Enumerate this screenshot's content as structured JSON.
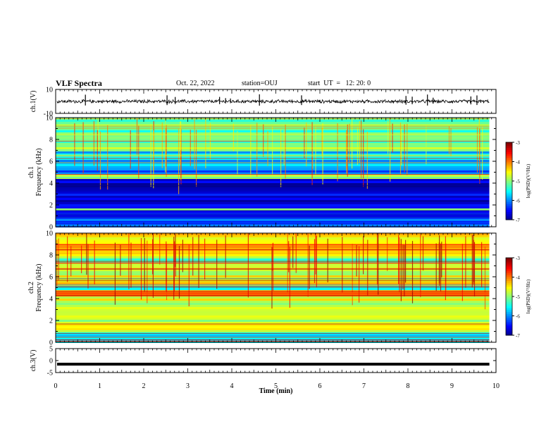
{
  "header": {
    "title": "VLF Spectra",
    "date": "Oct. 22, 2022",
    "station": "station=OUJ",
    "start": "start  UT  =   12: 20: 0"
  },
  "chart_data": [
    {
      "type": "line",
      "ylabel": "ch.1(V)",
      "ylim": [
        -10,
        10
      ],
      "yticks": [
        "10",
        "-10"
      ],
      "series": [
        {
          "description_free": true,
          "amplitude_v": 1.2,
          "baseline_v": 0
        }
      ]
    },
    {
      "type": "heatmap",
      "ylabel_line1": "ch.1",
      "ylabel_line2": "Frequency  (kHz)",
      "ylim": [
        0,
        10
      ],
      "yticks": [
        "0",
        "2",
        "4",
        "6",
        "8",
        "10"
      ],
      "colorbar": {
        "label": "log(PSD)(V²/Hz)",
        "min": -7,
        "max": -3,
        "ticks": [
          "-3",
          "-4",
          "-5",
          "-6",
          "-7"
        ]
      },
      "bands_khz": [
        {
          "from": 0.0,
          "to": 0.9,
          "level": 0.25
        },
        {
          "from": 0.9,
          "to": 1.5,
          "level": 0.1
        },
        {
          "from": 1.5,
          "to": 1.7,
          "level": 0.55
        },
        {
          "from": 1.7,
          "to": 4.3,
          "level": 0.08
        },
        {
          "from": 4.3,
          "to": 4.7,
          "level": 0.5
        },
        {
          "from": 4.7,
          "to": 5.2,
          "level": 0.2
        },
        {
          "from": 5.2,
          "to": 7.0,
          "level": 0.32
        },
        {
          "from": 7.0,
          "to": 7.4,
          "level": 0.55
        },
        {
          "from": 7.4,
          "to": 10.0,
          "level": 0.45
        }
      ]
    },
    {
      "type": "heatmap",
      "ylabel_line1": "ch.2",
      "ylabel_line2": "Frequency  (kHz)",
      "ylim": [
        0,
        10
      ],
      "yticks": [
        "0",
        "2",
        "4",
        "6",
        "8",
        "10"
      ],
      "colorbar": {
        "label": "log(PSD)(V²/Hz)",
        "min": -7,
        "max": -3,
        "ticks": [
          "-3",
          "-4",
          "-5",
          "-6",
          "-7"
        ]
      },
      "bands_khz": [
        {
          "from": 0.0,
          "to": 1.0,
          "level": 0.38
        },
        {
          "from": 1.0,
          "to": 4.2,
          "level": 0.58
        },
        {
          "from": 4.2,
          "to": 4.8,
          "level": 0.72
        },
        {
          "from": 4.8,
          "to": 5.3,
          "level": 0.45
        },
        {
          "from": 5.3,
          "to": 7.2,
          "level": 0.6
        },
        {
          "from": 7.2,
          "to": 7.8,
          "level": 0.5
        },
        {
          "from": 7.8,
          "to": 10.0,
          "level": 0.68
        }
      ]
    },
    {
      "type": "line",
      "ylabel": "ch.3(V)",
      "ylim": [
        -5,
        5
      ],
      "yticks": [
        "5",
        "0",
        "-5"
      ],
      "series": [
        {
          "constant_v": -1.5
        }
      ]
    }
  ],
  "xaxis": {
    "label": "Time  (min)",
    "range": [
      0,
      10
    ],
    "ticks": [
      "0",
      "1",
      "2",
      "3",
      "4",
      "5",
      "6",
      "7",
      "8",
      "9",
      "10"
    ],
    "data_end": 9.85
  }
}
